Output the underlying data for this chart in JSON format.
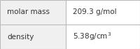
{
  "rows": [
    {
      "label": "molar mass",
      "value": "209.3 g/mol",
      "has_super": false
    },
    {
      "label": "density",
      "value_base": "5.38 g/cm",
      "value_super": "3",
      "has_super": true
    }
  ],
  "col_split": 0.47,
  "bg_left": "#f0f0f0",
  "bg_right": "#ffffff",
  "border_color": "#bbbbbb",
  "text_color": "#333333",
  "label_fontsize": 7.5,
  "value_fontsize": 7.5,
  "super_fontsize": 5.5,
  "fig_width": 2.0,
  "fig_height": 0.7,
  "dpi": 100
}
